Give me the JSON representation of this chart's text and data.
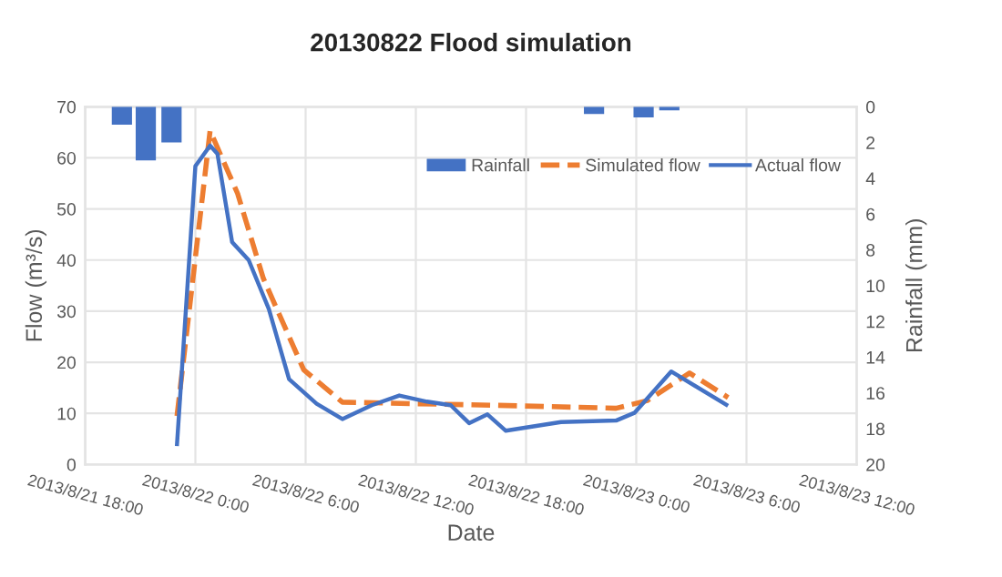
{
  "chart_data": {
    "type": "line",
    "title": "20130822 Flood simulation",
    "xlabel": "Date",
    "ylabel": "Flow (m³/s)",
    "y2label": "Rainfall (mm)",
    "xlim": [
      "2013-08-21T18:00",
      "2013-08-23T12:00"
    ],
    "xticks": [
      {
        "value": "2013-08-21T18:00",
        "label": "2013/8/21 18:00"
      },
      {
        "value": "2013-08-22T00:00",
        "label": "2013/8/22 0:00"
      },
      {
        "value": "2013-08-22T06:00",
        "label": "2013/8/22 6:00"
      },
      {
        "value": "2013-08-22T12:00",
        "label": "2013/8/22 12:00"
      },
      {
        "value": "2013-08-22T18:00",
        "label": "2013/8/22 18:00"
      },
      {
        "value": "2013-08-23T00:00",
        "label": "2013/8/23 0:00"
      },
      {
        "value": "2013-08-23T06:00",
        "label": "2013/8/23 6:00"
      },
      {
        "value": "2013-08-23T12:00",
        "label": "2013/8/23 12:00"
      }
    ],
    "ylim": [
      0,
      70
    ],
    "yticks": [
      0,
      10,
      20,
      30,
      40,
      50,
      60,
      70
    ],
    "y2lim": [
      20,
      0
    ],
    "y2ticks": [
      0,
      2,
      4,
      6,
      8,
      10,
      12,
      14,
      16,
      18,
      20
    ],
    "grid": true,
    "legend": "top right",
    "line_style": "solid",
    "series": [
      {
        "name": "Rainfall",
        "type": "bar",
        "axis": "y2",
        "color": "#4472c4",
        "x": [
          "2013-08-21T20:00",
          "2013-08-21T21:18",
          "2013-08-21T22:42",
          "2013-08-22T21:42",
          "2013-08-23T00:24",
          "2013-08-23T01:48"
        ],
        "values": [
          1.0,
          3.0,
          2.0,
          0.4,
          0.6,
          0.2
        ]
      },
      {
        "name": "Simulated flow",
        "line_style": "dashed",
        "color": "#ed7d31",
        "x": [
          "2013-08-21T23:00",
          "2013-08-22T00:48",
          "2013-08-22T02:18",
          "2013-08-22T03:42",
          "2013-08-22T05:54",
          "2013-08-22T08:00",
          "2013-08-22T11:54",
          "2013-08-22T16:12",
          "2013-08-22T22:54",
          "2013-08-23T00:36",
          "2013-08-23T02:54",
          "2013-08-23T05:00"
        ],
        "values": [
          9.5,
          65.3,
          53,
          36.4,
          18.5,
          12.2,
          11.9,
          11.6,
          11.0,
          12.5,
          17.9,
          13.1
        ]
      },
      {
        "name": "Actual flow",
        "color": "#4472c4",
        "x": [
          "2013-08-21T23:00",
          "2013-08-22T00:00",
          "2013-08-22T00:48",
          "2013-08-22T01:12",
          "2013-08-22T02:00",
          "2013-08-22T02:54",
          "2013-08-22T04:00",
          "2013-08-22T05:06",
          "2013-08-22T06:36",
          "2013-08-22T08:00",
          "2013-08-22T09:36",
          "2013-08-22T11:06",
          "2013-08-22T12:36",
          "2013-08-22T13:54",
          "2013-08-22T14:54",
          "2013-08-22T15:54",
          "2013-08-22T16:54",
          "2013-08-22T19:54",
          "2013-08-22T22:54",
          "2013-08-22T23:54",
          "2013-08-23T01:54",
          "2013-08-23T04:54"
        ],
        "values": [
          4,
          58.4,
          62.4,
          60.8,
          43.5,
          40,
          30.4,
          16.7,
          11.9,
          8.9,
          11.6,
          13.5,
          12.3,
          11.6,
          8.1,
          9.8,
          6.6,
          8.3,
          8.6,
          10.1,
          18.2,
          11.7
        ]
      }
    ]
  }
}
